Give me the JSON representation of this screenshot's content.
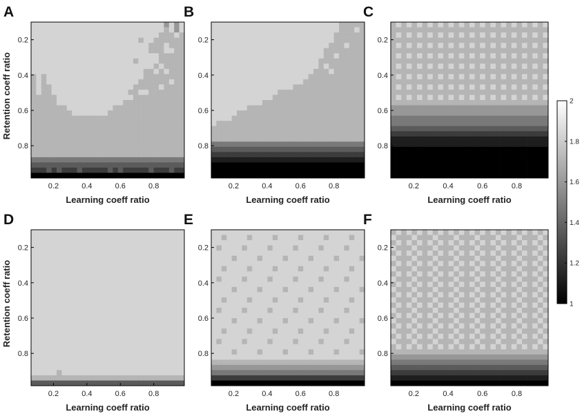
{
  "chart_data": {
    "type": "heatmap",
    "grid_size": 30,
    "color_scale": {
      "min": 1,
      "max": 2,
      "map": "gray",
      "low_color": "#000000",
      "high_color": "#ffffff"
    },
    "colorbar": {
      "ticks": [
        "2",
        "1.8",
        "1.6",
        "1.4",
        "1.2",
        "1"
      ],
      "values": [
        2,
        1.8,
        1.6,
        1.4,
        1.2,
        1
      ]
    },
    "x_range": [
      0.066,
      0.983
    ],
    "y_range": [
      0.1,
      0.983
    ],
    "xlabel": "Learning coeff ratio",
    "ylabel": "Retention coeff ratio",
    "x_ticks": [
      {
        "value": 0.2,
        "label": "0.2"
      },
      {
        "value": 0.4,
        "label": "0.4"
      },
      {
        "value": 0.6,
        "label": "0.6"
      },
      {
        "value": 0.8,
        "label": "0.8"
      }
    ],
    "y_ticks": [
      {
        "value": 0.2,
        "label": "0.2"
      },
      {
        "value": 0.4,
        "label": "0.4"
      },
      {
        "value": 0.6,
        "label": "0.6"
      },
      {
        "value": 0.8,
        "label": "0.8"
      }
    ],
    "panels": [
      {
        "letter": "A",
        "show_ylabel": true,
        "rows": [
          "888888888888888888888888886868",
          "888888888888888888888888887868",
          "888888888888888888888888877787",
          "888888888888888888888788777777",
          "888888888888888888888887778777",
          "888888888888888888888887778877",
          "888888888888888888888888877777",
          "888888888888888888887888877777",
          "888888888888888888888888787777",
          "888888888888888888888877878777",
          "787888888888888888888877777777",
          "787888888888888888888777777877",
          "787788888888888888887777787777",
          "787788888888888888877887777777",
          "777778888888888888887777777777",
          "777778888888888888777777777777",
          "777777788888888877777777777777",
          "777777778888888777777777777777",
          "777777777777777777777777777777",
          "777777777777777777777777777777",
          "777777777777777777777777777777",
          "777777777777777777777777777777",
          "777777777777777777777777777777",
          "777777777777777777777777777777",
          "777777777777777777777777777777",
          "777777777777777777777777777777",
          "555555555555555555555555555555",
          "444444444444444444444444444444",
          "333434333433333434333334333433",
          "111111111111111111111111111111"
        ]
      },
      {
        "letter": "B",
        "show_ylabel": false,
        "rows": [
          "888888888888888888888888877777",
          "888888888888888888888888877787",
          "888888888888888888888888777777",
          "888888888888888888888888777777",
          "888888888888888888888887778777",
          "888888888888888888888877777777",
          "888888888888888888888877877777",
          "888888888888888888888777777777",
          "888888888888888888888787777777",
          "888888888888888888887778777777",
          "888888888888888888877777777777",
          "888888888888888888777777777777",
          "888888888888888877777777777777",
          "888888888888877777777777777777",
          "888888888888777777777777777777",
          "888888888877777777777777777777",
          "888888877777777777777777777777",
          "888887777777777777777777777777",
          "888877777777777777777777777777",
          "877777777777777777777777777777",
          "777777777777777777777777777777",
          "777777777777777777777777777777",
          "777777777777777777777777777777",
          "555555555555555555555555555555",
          "444444444444444444444444444444",
          "333333333333333333333333333333",
          "222222222222222222222222222222",
          "111111111111111111111111111111",
          "111111111111111111111111111111",
          "111111111111111111111111111111"
        ]
      },
      {
        "letter": "C",
        "show_ylabel": false,
        "rows": [
          "787878787878787878787878787878",
          "777777777777777777777777777777",
          "787878787878787878787878787878",
          "777777777777777777777777777777",
          "787878787878787878787878787878",
          "777777777777777777777777777777",
          "787878787878787878787878787878",
          "777777777777777777777777777777",
          "787878787878787878787878787878",
          "777777777777777777777777777777",
          "787878787878787878787878787878",
          "777777777777777777777777777777",
          "787878787878787878787878787878",
          "777777777777777777777777777777",
          "787878787878787878787878787878",
          "777777777777777777777777777777",
          "666666666666666666666666666666",
          "666666666666666666666666666666",
          "555555555555555555555555555555",
          "555555555555555555555555555555",
          "444444444444444444444444444444",
          "333333333333333333333333333333",
          "222222222222222222222222222222",
          "222222222222222222222222222222",
          "111111111111111111111111111111",
          "111111111111111111111111111111",
          "111111111111111111111111111111",
          "111111111111111111111111111111",
          "111111111111111111111111111111",
          "111111111111111111111111111111"
        ]
      },
      {
        "letter": "D",
        "show_ylabel": true,
        "rows": [
          "888888888888888888888888888888",
          "888888888888888888888888888888",
          "888888888888888888888888888888",
          "888888888888888888888888888888",
          "888888888888888888888888888888",
          "888888888888888888888888888888",
          "888888888888888888888888888888",
          "888888888888888888888888888888",
          "888888888888888888888888888888",
          "888888888888888888888888888888",
          "888888888888888888888888888888",
          "888888888888888888888888888888",
          "888888888888888888888888888888",
          "888888888888888888888888888888",
          "888888888888888888888888888888",
          "888888888888888888888888888888",
          "888888888888888888888888888888",
          "888888888888888888888888888888",
          "888888888888888888888888888888",
          "888888888888888888888888888888",
          "888888888888888888888888888888",
          "888888888888888888888888888888",
          "888888888888888888888888888888",
          "888888888888888888888888888888",
          "888888888888888888888888888888",
          "888888888888888888888888888888",
          "888888888888888888888888888888",
          "888887888888888888888888888888",
          "777777777777777777777777777777",
          "444444444444444444444444444444"
        ]
      },
      {
        "letter": "E",
        "show_ylabel": false,
        "rows": [
          "888888888888888888888888888888",
          "887888878888788887888878888788",
          "888888888888888888888888888888",
          "878888788887888878888788887888",
          "888888888888888888888888888888",
          "888878888788887888878888788887",
          "888888888888888888888888888888",
          "887888878888788887888878888788",
          "888888888888888888888888888888",
          "878888788887888878888788887888",
          "888888888888888888888888888888",
          "888878888788887888878888788887",
          "888888888888888888888888888888",
          "887888878888788887888878888788",
          "888888888888888888888888888888",
          "878888788887888878888788887888",
          "888888888888888888888888888888",
          "888878888788887888878888788887",
          "888888888888888888888888888888",
          "887888878888788887888878888788",
          "888888888888888888888888888888",
          "878888788887888878888788887888",
          "888888888888888888888888888888",
          "888878888788887888878888788887",
          "888888888888888888888888888888",
          "777777777777777777777777777777",
          "666666666666666666666666666666",
          "555555555555555555555555555555",
          "333333333333333333333333333333",
          "111111111111111111111111111111"
        ]
      },
      {
        "letter": "F",
        "show_ylabel": false,
        "rows": [
          "787878787878787878787878787878",
          "877787778777877787778777877787",
          "787878787878787878787878787878",
          "877787778777877787778777877787",
          "787878787878787878787878787878",
          "877787778777877787778777877787",
          "787878787878787878787878787878",
          "877787778777877787778777877787",
          "787878787878787878787878787878",
          "877787778777877787778777877787",
          "787878787878787878787878787878",
          "877787778777877787778777877787",
          "787878787878787878787878787878",
          "877787778777877787778777877787",
          "787878787878787878787878787878",
          "877787778777877787778777877787",
          "787878787878787878787878787878",
          "877787778777877787778777877787",
          "787878787878787878787878787878",
          "877787778777877787778777877787",
          "787878787878787878787878787878",
          "877787778777877787778777877787",
          "787878787878787878787878787878",
          "777777777777777777777777777777",
          "666666666666666666666666666666",
          "555555555555555555555555555555",
          "444444444444444444444444444444",
          "333333333333333333333333333333",
          "222222222222222222222222222222",
          "111111111111111111111111111111"
        ]
      }
    ]
  }
}
